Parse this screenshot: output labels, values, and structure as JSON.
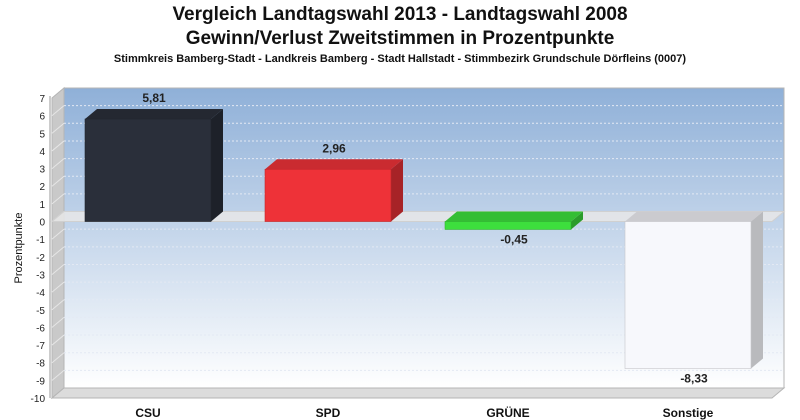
{
  "colors": {
    "plot_top": "#8fb0d8",
    "plot_bottom": "#ffffff",
    "wall_side": "#c9c9c9"
  },
  "chart_data": {
    "type": "bar",
    "title": "Vergleich Landtagswahl 2013 - Landtagswahl 2008",
    "subtitle": "Gewinn/Verlust Zweitstimmen in Prozentpunkte",
    "caption": "Stimmkreis Bamberg-Stadt - Landkreis Bamberg - Stadt Hallstadt - Stimmbezirk Grundschule Dörfleins (0007)",
    "ylabel": "Prozentpunkte",
    "xlabel": "",
    "ylim": [
      -10,
      7
    ],
    "yticks": [
      "7",
      "6",
      "5",
      "4",
      "3",
      "2",
      "1",
      "0",
      "-1",
      "-2",
      "-3",
      "-4",
      "-5",
      "-6",
      "-7",
      "-8",
      "-9",
      "-10"
    ],
    "categories": [
      "CSU",
      "SPD",
      "GRÜNE",
      "Sonstige"
    ],
    "values": [
      5.81,
      2.96,
      -0.45,
      -8.33
    ],
    "value_labels": [
      "5,81",
      "2,96",
      "-0,45",
      "-8,33"
    ],
    "bar_colors": [
      "#2a2f3a",
      "#ee3238",
      "#3ddf3d",
      "#f7f8fc"
    ],
    "grid": true,
    "legend": "none"
  }
}
